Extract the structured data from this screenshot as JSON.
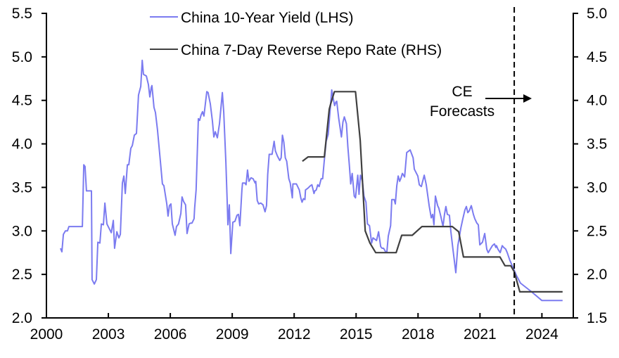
{
  "chart_data": {
    "type": "line",
    "title": "",
    "xlabel": "",
    "ylabel_left": "",
    "ylabel_right": "",
    "xlim": [
      2000,
      2025.5
    ],
    "ylim_left": [
      2.0,
      5.5
    ],
    "ylim_right": [
      1.5,
      5.0
    ],
    "x_ticks": [
      2000,
      2003,
      2006,
      2009,
      2012,
      2015,
      2018,
      2021,
      2024
    ],
    "x_tick_labels": [
      "2000",
      "2003",
      "2006",
      "2009",
      "2012",
      "2015",
      "2018",
      "2021",
      "2024"
    ],
    "y_left_ticks": [
      2.0,
      2.5,
      3.0,
      3.5,
      4.0,
      4.5,
      5.0,
      5.5
    ],
    "y_left_tick_labels": [
      "2.0",
      "2.5",
      "3.0",
      "3.5",
      "4.0",
      "4.5",
      "5.0",
      "5.5"
    ],
    "y_right_ticks": [
      1.5,
      2.0,
      2.5,
      3.0,
      3.5,
      4.0,
      4.5,
      5.0
    ],
    "y_right_tick_labels": [
      "1.5",
      "2.0",
      "2.5",
      "3.0",
      "3.5",
      "4.0",
      "4.5",
      "5.0"
    ],
    "grid": false,
    "legend_position": "top-center",
    "series": [
      {
        "name": "China 10-Year Yield (LHS)",
        "axis": "left",
        "color": "#7b7bf0",
        "points": [
          [
            2000.68,
            2.8
          ],
          [
            2000.75,
            2.76
          ],
          [
            2000.82,
            2.96
          ],
          [
            2000.92,
            3.0
          ],
          [
            2001.02,
            3.0
          ],
          [
            2001.09,
            3.05
          ],
          [
            2001.74,
            3.05
          ],
          [
            2001.81,
            3.76
          ],
          [
            2001.87,
            3.74
          ],
          [
            2001.94,
            3.46
          ],
          [
            2002.18,
            3.46
          ],
          [
            2002.21,
            2.44
          ],
          [
            2002.32,
            2.39
          ],
          [
            2002.42,
            2.44
          ],
          [
            2002.49,
            2.87
          ],
          [
            2002.59,
            2.86
          ],
          [
            2002.66,
            3.08
          ],
          [
            2002.76,
            3.07
          ],
          [
            2002.83,
            3.32
          ],
          [
            2002.93,
            3.08
          ],
          [
            2003.14,
            2.98
          ],
          [
            2003.24,
            3.12
          ],
          [
            2003.3,
            2.8
          ],
          [
            2003.41,
            2.99
          ],
          [
            2003.51,
            2.92
          ],
          [
            2003.58,
            2.96
          ],
          [
            2003.68,
            3.55
          ],
          [
            2003.75,
            3.63
          ],
          [
            2003.82,
            3.43
          ],
          [
            2003.92,
            3.76
          ],
          [
            2003.99,
            3.76
          ],
          [
            2004.09,
            3.95
          ],
          [
            2004.16,
            3.98
          ],
          [
            2004.26,
            4.1
          ],
          [
            2004.36,
            4.12
          ],
          [
            2004.46,
            4.56
          ],
          [
            2004.57,
            4.66
          ],
          [
            2004.64,
            4.96
          ],
          [
            2004.7,
            4.8
          ],
          [
            2004.84,
            4.78
          ],
          [
            2004.94,
            4.68
          ],
          [
            2005.01,
            4.54
          ],
          [
            2005.08,
            4.65
          ],
          [
            2005.11,
            4.67
          ],
          [
            2005.21,
            4.42
          ],
          [
            2005.28,
            4.36
          ],
          [
            2005.38,
            4.16
          ],
          [
            2005.52,
            3.8
          ],
          [
            2005.62,
            3.54
          ],
          [
            2005.69,
            3.52
          ],
          [
            2005.83,
            3.31
          ],
          [
            2005.89,
            3.17
          ],
          [
            2005.96,
            3.29
          ],
          [
            2006.03,
            3.31
          ],
          [
            2006.1,
            3.08
          ],
          [
            2006.17,
            3.01
          ],
          [
            2006.23,
            2.95
          ],
          [
            2006.3,
            3.05
          ],
          [
            2006.4,
            3.08
          ],
          [
            2006.51,
            3.2
          ],
          [
            2006.57,
            3.39
          ],
          [
            2006.64,
            3.34
          ],
          [
            2006.74,
            3.3
          ],
          [
            2006.78,
            3.12
          ],
          [
            2006.81,
            2.97
          ],
          [
            2006.91,
            3.08
          ],
          [
            2006.98,
            3.09
          ],
          [
            2007.05,
            3.09
          ],
          [
            2007.15,
            3.14
          ],
          [
            2007.18,
            3.26
          ],
          [
            2007.25,
            3.47
          ],
          [
            2007.36,
            4.29
          ],
          [
            2007.42,
            4.27
          ],
          [
            2007.49,
            4.33
          ],
          [
            2007.56,
            4.37
          ],
          [
            2007.63,
            4.32
          ],
          [
            2007.77,
            4.6
          ],
          [
            2007.83,
            4.59
          ],
          [
            2007.94,
            4.46
          ],
          [
            2008.04,
            4.26
          ],
          [
            2008.11,
            4.08
          ],
          [
            2008.18,
            4.14
          ],
          [
            2008.28,
            4.07
          ],
          [
            2008.38,
            4.23
          ],
          [
            2008.52,
            4.59
          ],
          [
            2008.59,
            4.36
          ],
          [
            2008.69,
            3.79
          ],
          [
            2008.76,
            3.31
          ],
          [
            2008.79,
            3.07
          ],
          [
            2008.86,
            3.3
          ],
          [
            2008.93,
            2.74
          ],
          [
            2009.03,
            3.1
          ],
          [
            2009.13,
            3.11
          ],
          [
            2009.23,
            3.18
          ],
          [
            2009.3,
            3.19
          ],
          [
            2009.37,
            3.06
          ],
          [
            2009.47,
            3.47
          ],
          [
            2009.5,
            3.55
          ],
          [
            2009.61,
            3.55
          ],
          [
            2009.67,
            3.53
          ],
          [
            2009.74,
            3.7
          ],
          [
            2009.81,
            3.57
          ],
          [
            2009.91,
            3.61
          ],
          [
            2010.01,
            3.6
          ],
          [
            2010.11,
            3.55
          ],
          [
            2010.14,
            3.57
          ],
          [
            2010.21,
            3.35
          ],
          [
            2010.28,
            3.31
          ],
          [
            2010.38,
            3.32
          ],
          [
            2010.49,
            3.3
          ],
          [
            2010.59,
            3.22
          ],
          [
            2010.66,
            3.29
          ],
          [
            2010.72,
            3.65
          ],
          [
            2010.79,
            3.88
          ],
          [
            2010.93,
            3.88
          ],
          [
            2011.03,
            4.03
          ],
          [
            2011.09,
            3.92
          ],
          [
            2011.19,
            3.86
          ],
          [
            2011.3,
            3.81
          ],
          [
            2011.37,
            3.84
          ],
          [
            2011.43,
            4.1
          ],
          [
            2011.5,
            4.02
          ],
          [
            2011.57,
            3.84
          ],
          [
            2011.64,
            3.8
          ],
          [
            2011.74,
            3.6
          ],
          [
            2011.81,
            3.55
          ],
          [
            2011.91,
            3.38
          ],
          [
            2011.94,
            3.54
          ],
          [
            2012.11,
            3.54
          ],
          [
            2012.25,
            3.47
          ],
          [
            2012.32,
            3.38
          ],
          [
            2012.38,
            3.33
          ],
          [
            2012.45,
            3.37
          ],
          [
            2012.52,
            3.36
          ],
          [
            2012.55,
            3.47
          ],
          [
            2012.66,
            3.49
          ],
          [
            2012.79,
            3.52
          ],
          [
            2012.86,
            3.53
          ],
          [
            2012.96,
            3.43
          ],
          [
            2013.0,
            3.46
          ],
          [
            2013.07,
            3.47
          ],
          [
            2013.14,
            3.53
          ],
          [
            2013.21,
            3.51
          ],
          [
            2013.31,
            3.6
          ],
          [
            2013.38,
            3.6
          ],
          [
            2013.45,
            3.79
          ],
          [
            2013.55,
            4.03
          ],
          [
            2013.65,
            4.11
          ],
          [
            2013.82,
            4.62
          ],
          [
            2013.89,
            4.52
          ],
          [
            2013.96,
            4.44
          ],
          [
            2014.02,
            4.48
          ],
          [
            2014.06,
            4.49
          ],
          [
            2014.16,
            4.29
          ],
          [
            2014.29,
            4.08
          ],
          [
            2014.36,
            4.25
          ],
          [
            2014.43,
            4.31
          ],
          [
            2014.53,
            4.23
          ],
          [
            2014.6,
            3.97
          ],
          [
            2014.67,
            3.76
          ],
          [
            2014.74,
            3.54
          ],
          [
            2014.81,
            3.66
          ],
          [
            2014.91,
            3.4
          ],
          [
            2014.97,
            3.38
          ],
          [
            2015.08,
            3.64
          ],
          [
            2015.14,
            3.42
          ],
          [
            2015.21,
            3.64
          ],
          [
            2015.31,
            3.57
          ],
          [
            2015.38,
            3.4
          ],
          [
            2015.48,
            3.33
          ],
          [
            2015.55,
            3.08
          ],
          [
            2015.65,
            3.06
          ],
          [
            2015.75,
            2.86
          ],
          [
            2015.82,
            2.92
          ],
          [
            2015.99,
            2.89
          ],
          [
            2016.09,
            2.99
          ],
          [
            2016.19,
            2.82
          ],
          [
            2016.26,
            2.8
          ],
          [
            2016.33,
            2.8
          ],
          [
            2016.43,
            2.76
          ],
          [
            2016.49,
            2.76
          ],
          [
            2016.56,
            2.94
          ],
          [
            2016.67,
            3.06
          ],
          [
            2016.73,
            3.36
          ],
          [
            2016.84,
            3.36
          ],
          [
            2016.9,
            3.31
          ],
          [
            2016.97,
            3.52
          ],
          [
            2017.04,
            3.63
          ],
          [
            2017.11,
            3.57
          ],
          [
            2017.18,
            3.61
          ],
          [
            2017.24,
            3.66
          ],
          [
            2017.35,
            3.62
          ],
          [
            2017.45,
            3.9
          ],
          [
            2017.62,
            3.93
          ],
          [
            2017.76,
            3.84
          ],
          [
            2017.82,
            3.71
          ],
          [
            2017.99,
            3.63
          ],
          [
            2018.06,
            3.53
          ],
          [
            2018.16,
            3.51
          ],
          [
            2018.3,
            3.64
          ],
          [
            2018.4,
            3.53
          ],
          [
            2018.54,
            3.29
          ],
          [
            2018.64,
            3.15
          ],
          [
            2018.71,
            3.19
          ],
          [
            2018.77,
            3.07
          ],
          [
            2018.84,
            3.4
          ],
          [
            2018.95,
            3.29
          ],
          [
            2019.01,
            3.26
          ],
          [
            2019.11,
            3.16
          ],
          [
            2019.21,
            3.05
          ],
          [
            2019.28,
            3.19
          ],
          [
            2019.35,
            3.28
          ],
          [
            2019.42,
            3.19
          ],
          [
            2019.52,
            3.18
          ],
          [
            2019.59,
            2.99
          ],
          [
            2019.69,
            2.79
          ],
          [
            2019.83,
            2.52
          ],
          [
            2019.93,
            2.83
          ],
          [
            2020.0,
            2.93
          ],
          [
            2020.07,
            3.03
          ],
          [
            2020.17,
            3.14
          ],
          [
            2020.27,
            3.24
          ],
          [
            2020.34,
            3.28
          ],
          [
            2020.41,
            3.21
          ],
          [
            2020.48,
            3.23
          ],
          [
            2020.58,
            3.29
          ],
          [
            2020.68,
            3.19
          ],
          [
            2020.75,
            3.14
          ],
          [
            2020.85,
            3.09
          ],
          [
            2020.92,
            3.07
          ],
          [
            2020.99,
            2.84
          ],
          [
            2021.12,
            2.87
          ],
          [
            2021.23,
            2.97
          ],
          [
            2021.33,
            2.79
          ],
          [
            2021.4,
            2.75
          ],
          [
            2021.5,
            2.79
          ],
          [
            2021.6,
            2.83
          ],
          [
            2021.7,
            2.85
          ],
          [
            2021.77,
            2.81
          ],
          [
            2021.8,
            2.83
          ],
          [
            2021.87,
            2.79
          ],
          [
            2021.98,
            2.75
          ],
          [
            2022.08,
            2.83
          ],
          [
            2022.15,
            2.81
          ],
          [
            2022.25,
            2.79
          ],
          [
            2022.32,
            2.75
          ],
          [
            2022.45,
            2.66
          ],
          [
            2022.62,
            2.57
          ],
          [
            2022.76,
            2.49
          ],
          [
            2022.96,
            2.4
          ],
          [
            2023.5,
            2.3
          ],
          [
            2024.0,
            2.2
          ],
          [
            2025.0,
            2.2
          ]
        ]
      },
      {
        "name": "China 7-Day Reverse Repo Rate (RHS)",
        "axis": "right",
        "color": "#404040",
        "points": [
          [
            2012.4,
            3.3
          ],
          [
            2012.67,
            3.35
          ],
          [
            2013.46,
            3.35
          ],
          [
            2013.7,
            3.9
          ],
          [
            2013.77,
            3.96
          ],
          [
            2013.95,
            4.1
          ],
          [
            2014.97,
            4.1
          ],
          [
            2015.2,
            3.54
          ],
          [
            2015.44,
            2.5
          ],
          [
            2015.67,
            2.36
          ],
          [
            2015.95,
            2.25
          ],
          [
            2016.94,
            2.25
          ],
          [
            2017.21,
            2.45
          ],
          [
            2017.72,
            2.45
          ],
          [
            2018.19,
            2.55
          ],
          [
            2019.66,
            2.55
          ],
          [
            2019.97,
            2.49
          ],
          [
            2020.2,
            2.2
          ],
          [
            2021.97,
            2.2
          ],
          [
            2022.21,
            2.1
          ],
          [
            2022.49,
            2.1
          ],
          [
            2022.66,
            2.03
          ],
          [
            2022.93,
            1.8
          ],
          [
            2025.0,
            1.8
          ]
        ]
      }
    ],
    "annotations": [
      {
        "text_lines": [
          "CE",
          "Forecasts"
        ],
        "type": "text-with-arrow",
        "arrow_direction": "right"
      },
      {
        "type": "vertical-dashed-line",
        "x": 2022.66
      }
    ]
  }
}
